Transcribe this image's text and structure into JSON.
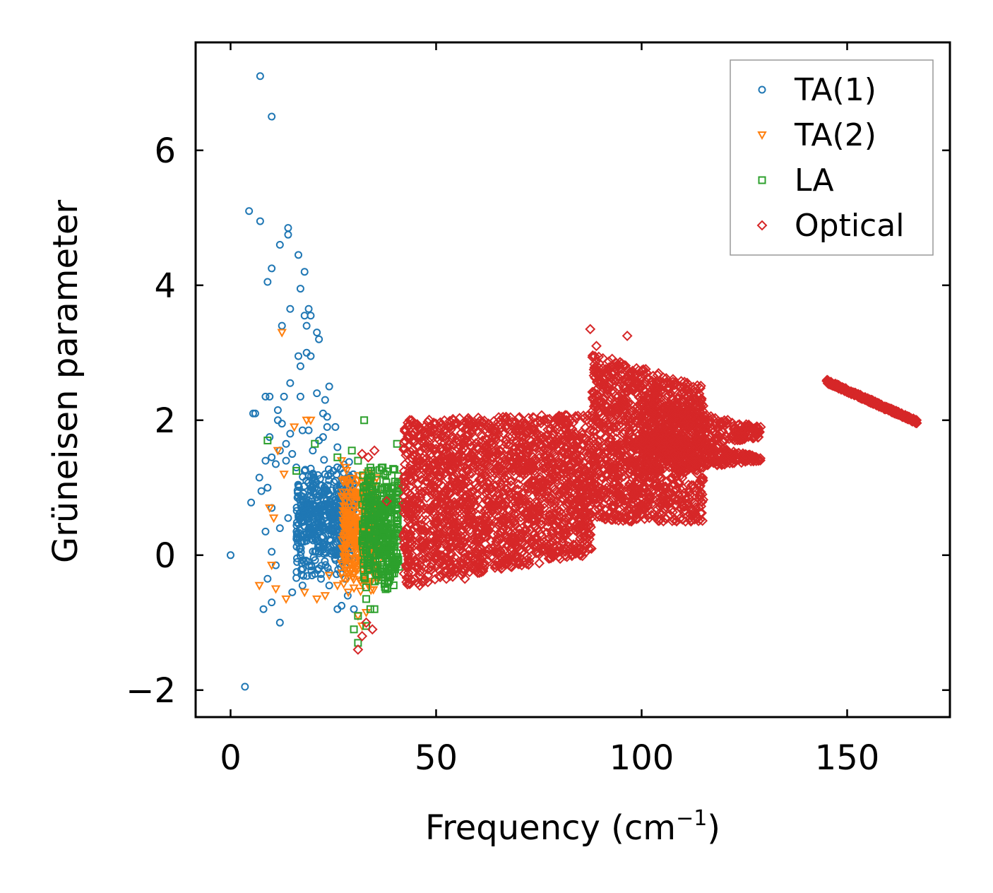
{
  "chart_data": {
    "type": "scatter",
    "title": "",
    "xlabel": "Frequency (cm",
    "xlabel_sup": "−1",
    "xlabel_close": ")",
    "ylabel": "Grüneisen parameter",
    "xlim": [
      -8.5,
      175
    ],
    "ylim": [
      -2.4,
      7.6
    ],
    "xticks": [
      0,
      50,
      100,
      150
    ],
    "xtick_labels": [
      "0",
      "50",
      "100",
      "150"
    ],
    "yticks": [
      -2,
      0,
      2,
      4,
      6
    ],
    "ytick_labels": [
      "−2",
      "0",
      "2",
      "4",
      "6"
    ],
    "grid": false,
    "legend_position": "top-right",
    "series": [
      {
        "name": "TA(1)",
        "marker": "circle",
        "color": "#1f77b4",
        "points": [
          [
            7.2,
            7.1
          ],
          [
            10,
            6.5
          ],
          [
            4.5,
            5.1
          ],
          [
            7.2,
            4.95
          ],
          [
            14,
            4.85
          ],
          [
            14,
            4.75
          ],
          [
            12,
            4.6
          ],
          [
            16.5,
            4.45
          ],
          [
            10,
            4.25
          ],
          [
            18,
            4.2
          ],
          [
            9,
            4.05
          ],
          [
            17,
            3.95
          ],
          [
            14.5,
            3.65
          ],
          [
            19,
            3.65
          ],
          [
            18,
            3.55
          ],
          [
            19.5,
            3.55
          ],
          [
            12.5,
            3.4
          ],
          [
            18.5,
            3.4
          ],
          [
            21,
            3.3
          ],
          [
            21.5,
            3.2
          ],
          [
            18.5,
            3.0
          ],
          [
            19.5,
            2.95
          ],
          [
            16.5,
            2.95
          ],
          [
            17,
            2.8
          ],
          [
            14.5,
            2.55
          ],
          [
            24,
            2.5
          ],
          [
            13,
            2.35
          ],
          [
            8.5,
            2.35
          ],
          [
            9.5,
            2.35
          ],
          [
            17,
            2.35
          ],
          [
            21,
            2.4
          ],
          [
            23,
            2.3
          ],
          [
            5.5,
            2.1
          ],
          [
            6,
            2.1
          ],
          [
            11.5,
            2.15
          ],
          [
            22.5,
            2.1
          ],
          [
            23.5,
            2.05
          ],
          [
            11.5,
            2.0
          ],
          [
            12.5,
            1.95
          ],
          [
            23.5,
            1.9
          ],
          [
            25.5,
            1.9
          ],
          [
            19,
            1.85
          ],
          [
            17.5,
            1.85
          ],
          [
            14.5,
            1.8
          ],
          [
            9.5,
            1.75
          ],
          [
            22.5,
            1.75
          ],
          [
            21.5,
            1.7
          ],
          [
            13.5,
            1.65
          ],
          [
            12,
            1.55
          ],
          [
            20,
            1.55
          ],
          [
            26,
            1.6
          ],
          [
            15,
            1.5
          ],
          [
            10,
            1.45
          ],
          [
            8.5,
            1.4
          ],
          [
            13.5,
            1.4
          ],
          [
            11,
            1.35
          ],
          [
            16,
            1.3
          ],
          [
            18,
            1.25
          ],
          [
            7,
            1.15
          ],
          [
            23,
            1.2
          ],
          [
            25,
            1.25
          ],
          [
            9,
            1.0
          ],
          [
            7.5,
            0.95
          ],
          [
            5,
            0.78
          ],
          [
            10,
            0.7
          ],
          [
            14,
            0.55
          ],
          [
            12,
            0.4
          ],
          [
            8.5,
            0.35
          ],
          [
            10,
            0.05
          ],
          [
            9,
            -0.35
          ],
          [
            11,
            -0.15
          ],
          [
            15,
            -0.55
          ],
          [
            17.5,
            -0.45
          ],
          [
            10,
            -0.7
          ],
          [
            8,
            -0.8
          ],
          [
            12,
            -1.0
          ],
          [
            3.5,
            -1.95
          ],
          [
            0,
            0.0
          ],
          [
            26,
            -0.8
          ],
          [
            27,
            -0.75
          ],
          [
            24,
            -0.45
          ],
          [
            22,
            -0.35
          ],
          [
            30,
            -0.8
          ],
          [
            28.5,
            -0.6
          ]
        ],
        "clusters": [
          {
            "x": [
              16,
              30
            ],
            "y": [
              -0.4,
              1.45
            ],
            "n": 520
          }
        ]
      },
      {
        "name": "TA(2)",
        "marker": "triangle-down",
        "color": "#ff7f0e",
        "points": [
          [
            12.5,
            3.3
          ],
          [
            11.5,
            1.55
          ],
          [
            18.5,
            2.0
          ],
          [
            19.5,
            2.0
          ],
          [
            15.5,
            1.9
          ],
          [
            13,
            1.2
          ],
          [
            9.5,
            0.7
          ],
          [
            10.5,
            0.55
          ],
          [
            7,
            -0.45
          ],
          [
            11,
            -0.5
          ],
          [
            13.5,
            -0.65
          ],
          [
            18,
            -0.55
          ],
          [
            21,
            -0.65
          ],
          [
            23,
            -0.6
          ],
          [
            10,
            -0.15
          ],
          [
            27,
            1.4
          ],
          [
            28,
            1.3
          ],
          [
            26,
            -0.45
          ],
          [
            24,
            -0.3
          ],
          [
            31,
            -0.9
          ],
          [
            32,
            -1.05
          ],
          [
            33,
            -0.85
          ]
        ],
        "clusters": [
          {
            "x": [
              27,
              36
            ],
            "y": [
              -0.6,
              1.3
            ],
            "n": 380
          }
        ]
      },
      {
        "name": "LA",
        "marker": "square",
        "color": "#2ca02c",
        "points": [
          [
            32.5,
            2.0
          ],
          [
            40.5,
            1.65
          ],
          [
            20.5,
            1.65
          ],
          [
            9,
            1.7
          ],
          [
            29.5,
            1.55
          ],
          [
            31,
            1.4
          ],
          [
            37,
            1.3
          ],
          [
            41,
            1.0
          ],
          [
            42.5,
            0.75
          ],
          [
            33,
            -0.65
          ],
          [
            34,
            -0.8
          ],
          [
            31,
            -0.9
          ],
          [
            30,
            -1.1
          ],
          [
            31,
            -1.3
          ],
          [
            33,
            -1.05
          ],
          [
            35,
            -0.8
          ],
          [
            26,
            1.45
          ],
          [
            16,
            1.25
          ]
        ],
        "clusters": [
          {
            "x": [
              32,
              41
            ],
            "y": [
              -0.6,
              1.4
            ],
            "n": 380
          }
        ]
      },
      {
        "name": "Optical",
        "marker": "diamond",
        "color": "#d62728",
        "points": [
          [
            35,
            1.55
          ],
          [
            32,
            1.5
          ],
          [
            33.5,
            1.45
          ],
          [
            31,
            -1.4
          ],
          [
            32,
            -1.2
          ],
          [
            33,
            -1.0
          ],
          [
            34.5,
            -1.1
          ],
          [
            38,
            0.8
          ],
          [
            46,
            -0.45
          ],
          [
            48,
            -0.4
          ],
          [
            52.5,
            -0.35
          ],
          [
            57,
            -0.35
          ],
          [
            61,
            -0.25
          ],
          [
            66,
            -0.15
          ],
          [
            70,
            -0.1
          ],
          [
            87.5,
            3.35
          ],
          [
            89,
            3.1
          ],
          [
            96.5,
            3.25
          ],
          [
            107,
            2.4
          ],
          [
            115,
            1.3
          ],
          [
            112,
            0.5
          ],
          [
            101,
            0.8
          ],
          [
            85,
            0.8
          ],
          [
            78,
            0.85
          ],
          [
            74,
            1.1
          ],
          [
            93,
            1.6
          ],
          [
            91,
            1.9
          ]
        ],
        "bands": [
          {
            "x": [
              42,
              88
            ],
            "lo": [
              -0.45,
              0.0
            ],
            "hi": [
              2.0,
              2.1
            ],
            "n": 2000
          },
          {
            "x": [
              88,
              115
            ],
            "lo": [
              0.5,
              0.5
            ],
            "hi": [
              3.0,
              2.5
            ],
            "n": 1300
          },
          {
            "x": [
              100,
              129
            ],
            "lo": [
              1.5,
              1.75
            ],
            "hi": [
              2.3,
              1.9
            ],
            "n": 300
          },
          {
            "x": [
              100,
              129
            ],
            "lo": [
              1.2,
              1.4
            ],
            "hi": [
              1.9,
              1.45
            ],
            "n": 300
          },
          {
            "x": [
              145,
              167
            ],
            "lo": [
              2.55,
              1.95
            ],
            "hi": [
              2.6,
              2.0
            ],
            "n": 320
          }
        ]
      }
    ]
  }
}
